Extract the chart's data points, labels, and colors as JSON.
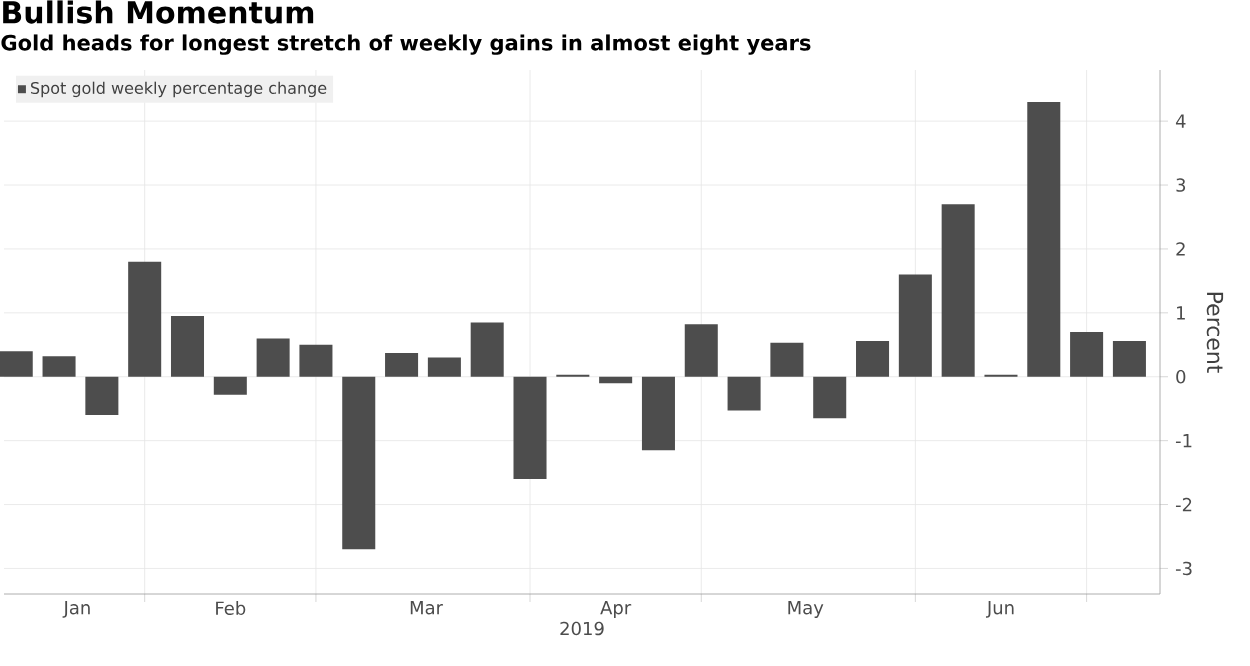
{
  "chart_data": {
    "type": "bar",
    "title": "Bullish Momentum",
    "subtitle": "Gold heads for longest stretch of weekly gains in almost eight years",
    "ylabel": "Percent",
    "xlabel": "2019",
    "x": [
      "2019-01-04",
      "2019-01-11",
      "2019-01-18",
      "2019-01-25",
      "2019-02-01",
      "2019-02-08",
      "2019-02-15",
      "2019-02-22",
      "2019-03-01",
      "2019-03-08",
      "2019-03-15",
      "2019-03-22",
      "2019-03-29",
      "2019-04-05",
      "2019-04-12",
      "2019-04-19",
      "2019-04-26",
      "2019-05-03",
      "2019-05-10",
      "2019-05-17",
      "2019-05-24",
      "2019-05-31",
      "2019-06-07",
      "2019-06-14",
      "2019-06-21",
      "2019-06-28",
      "2019-07-05"
    ],
    "series": [
      {
        "name": "Spot gold weekly percentage change",
        "color": "#4d4d4d",
        "values": [
          0.4,
          0.32,
          -0.6,
          1.8,
          0.95,
          -0.28,
          0.6,
          0.5,
          -2.7,
          0.37,
          0.3,
          0.85,
          -1.6,
          0.03,
          -0.1,
          -1.15,
          0.82,
          -0.53,
          0.53,
          -0.65,
          0.56,
          1.6,
          2.7,
          0.03,
          4.3,
          0.7,
          0.56
        ]
      }
    ],
    "xlim": [
      "2019-01-02",
      "2019-07-10"
    ],
    "xticks": [
      {
        "value": "2019-01-14",
        "label": "Jan"
      },
      {
        "value": "2019-01-25",
        "label": null
      },
      {
        "value": "2019-02-08",
        "label": "Feb"
      },
      {
        "value": "2019-02-22",
        "label": null
      },
      {
        "value": "2019-03-12",
        "label": "Mar"
      },
      {
        "value": "2019-03-29",
        "label": null
      },
      {
        "value": "2019-04-12",
        "label": "Apr"
      },
      {
        "value": "2019-04-26",
        "label": null
      },
      {
        "value": "2019-05-13",
        "label": "May"
      },
      {
        "value": "2019-05-31",
        "label": null
      },
      {
        "value": "2019-06-14",
        "label": "Jun"
      },
      {
        "value": "2019-06-28",
        "label": null
      }
    ],
    "ylim": [
      -3.4,
      4.8
    ],
    "yticks": [
      -3,
      -2,
      -1,
      0,
      1,
      2,
      3,
      4
    ],
    "grid": true,
    "legend": "top left"
  }
}
